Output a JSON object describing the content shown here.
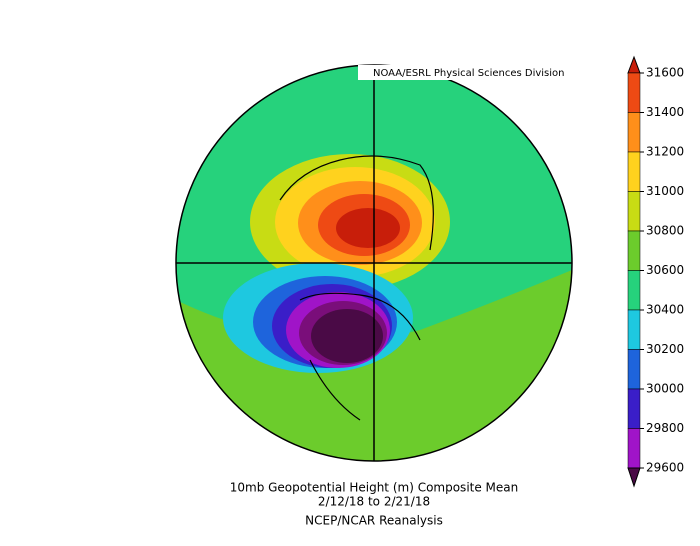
{
  "header": {
    "credit": "NOAA/ESRL Physical Sciences Division"
  },
  "caption": {
    "line1": "10mb Geopotential Height (m) Composite Mean",
    "line2": "2/12/18  to 2/21/18",
    "line3": "NCEP/NCAR Reanalysis"
  },
  "colorbar": {
    "ticks": [
      31600,
      31400,
      31200,
      31000,
      30800,
      30600,
      30400,
      30200,
      30000,
      29800,
      29600
    ],
    "colors": [
      "#c81e0a",
      "#ee4a14",
      "#ff8f1a",
      "#ffd21e",
      "#c8dc14",
      "#6ccc2c",
      "#26d27c",
      "#1ec8e0",
      "#1e64dc",
      "#3a1ec8",
      "#a014c8",
      "#7a0e7a",
      "#4a0a46"
    ]
  }
}
